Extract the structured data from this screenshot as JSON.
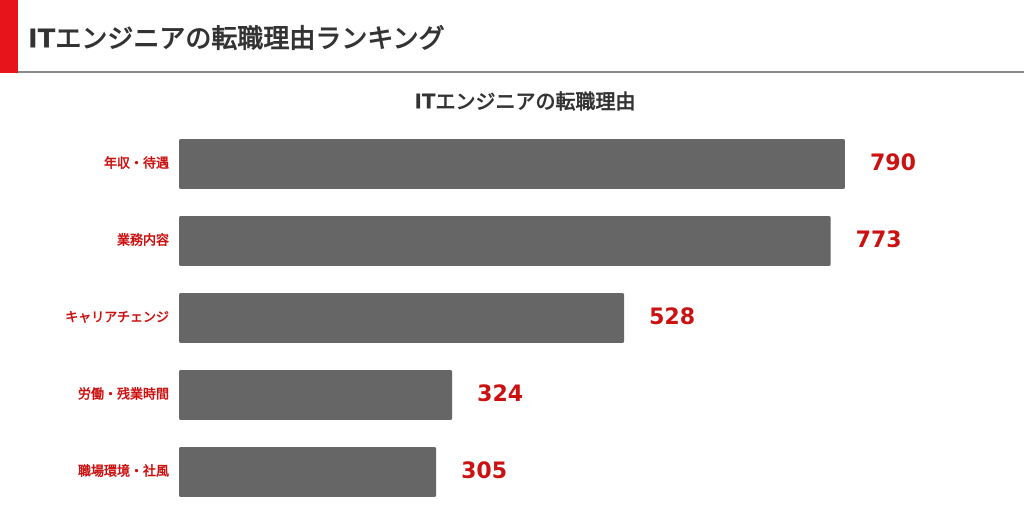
{
  "heading": {
    "title": "ITエンジニアの転職理由ランキング"
  },
  "chart_data": {
    "type": "bar",
    "orientation": "horizontal",
    "title": "ITエンジニアの転職理由",
    "categories": [
      "年収・待遇",
      "業務内容",
      "キャリアチェンジ",
      "労働・残業時間",
      "職場環境・社風"
    ],
    "values": [
      790,
      773,
      528,
      324,
      305
    ],
    "color": "#666666",
    "label_color": "#cc1111"
  }
}
